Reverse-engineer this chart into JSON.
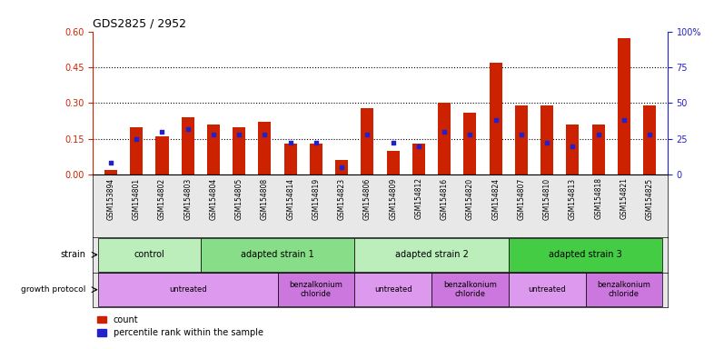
{
  "title": "GDS2825 / 2952",
  "samples": [
    "GSM153894",
    "GSM154801",
    "GSM154802",
    "GSM154803",
    "GSM154804",
    "GSM154805",
    "GSM154808",
    "GSM154814",
    "GSM154819",
    "GSM154823",
    "GSM154806",
    "GSM154809",
    "GSM154812",
    "GSM154816",
    "GSM154820",
    "GSM154824",
    "GSM154807",
    "GSM154810",
    "GSM154813",
    "GSM154818",
    "GSM154821",
    "GSM154825"
  ],
  "count": [
    0.02,
    0.2,
    0.16,
    0.24,
    0.21,
    0.2,
    0.22,
    0.13,
    0.13,
    0.06,
    0.28,
    0.1,
    0.13,
    0.3,
    0.26,
    0.47,
    0.29,
    0.29,
    0.21,
    0.21,
    0.57,
    0.29
  ],
  "percentile": [
    8,
    25,
    30,
    32,
    28,
    28,
    28,
    22,
    22,
    5,
    28,
    22,
    20,
    30,
    28,
    38,
    28,
    22,
    20,
    28,
    38,
    28
  ],
  "ylim_left": [
    0,
    0.6
  ],
  "ylim_right": [
    0,
    100
  ],
  "yticks_left": [
    0,
    0.15,
    0.3,
    0.45,
    0.6
  ],
  "yticks_right": [
    0,
    25,
    50,
    75,
    100
  ],
  "bar_color": "#cc2200",
  "dot_color": "#2222cc",
  "strain_spans": [
    {
      "label": "control",
      "start": 0,
      "end": 3,
      "color": "#bbeebb"
    },
    {
      "label": "adapted strain 1",
      "start": 4,
      "end": 9,
      "color": "#88dd88"
    },
    {
      "label": "adapted strain 2",
      "start": 10,
      "end": 15,
      "color": "#bbeebb"
    },
    {
      "label": "adapted strain 3",
      "start": 16,
      "end": 21,
      "color": "#44cc44"
    }
  ],
  "protocol_spans": [
    {
      "label": "untreated",
      "start": 0,
      "end": 6,
      "color": "#dd99ee"
    },
    {
      "label": "benzalkonium\nchloride",
      "start": 7,
      "end": 9,
      "color": "#cc77dd"
    },
    {
      "label": "untreated",
      "start": 10,
      "end": 12,
      "color": "#dd99ee"
    },
    {
      "label": "benzalkonium\nchloride",
      "start": 13,
      "end": 15,
      "color": "#cc77dd"
    },
    {
      "label": "untreated",
      "start": 16,
      "end": 18,
      "color": "#dd99ee"
    },
    {
      "label": "benzalkonium\nchloride",
      "start": 19,
      "end": 21,
      "color": "#cc77dd"
    }
  ],
  "background_color": "#ffffff"
}
